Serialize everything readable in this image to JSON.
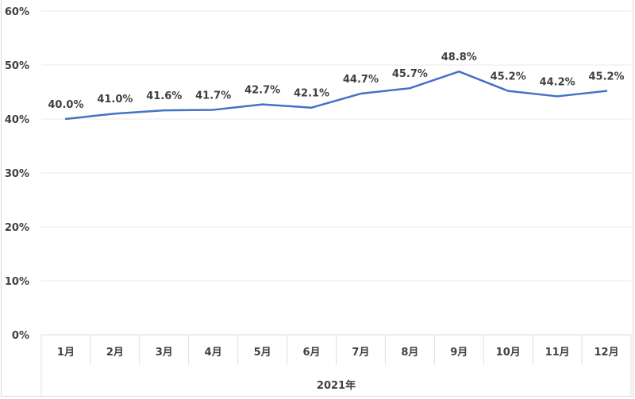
{
  "chart_data": {
    "type": "line",
    "title": "",
    "categories": [
      "1月",
      "2月",
      "3月",
      "4月",
      "5月",
      "6月",
      "7月",
      "8月",
      "9月",
      "10月",
      "11月",
      "12月"
    ],
    "group_label": "2021年",
    "series": [
      {
        "name": "",
        "color": "#4472c4",
        "values": [
          40.0,
          41.0,
          41.6,
          41.7,
          42.7,
          42.1,
          44.7,
          45.7,
          48.8,
          45.2,
          44.2,
          45.2
        ]
      }
    ],
    "data_labels": [
      "40.0%",
      "41.0%",
      "41.6%",
      "41.7%",
      "42.7%",
      "42.1%",
      "44.7%",
      "45.7%",
      "48.8%",
      "45.2%",
      "44.2%",
      "45.2%"
    ],
    "yticks": [
      "0%",
      "10%",
      "20%",
      "30%",
      "40%",
      "50%",
      "60%"
    ],
    "ylim": [
      0,
      60
    ],
    "grid": true,
    "legend": "none",
    "xlabel": "",
    "ylabel": ""
  }
}
